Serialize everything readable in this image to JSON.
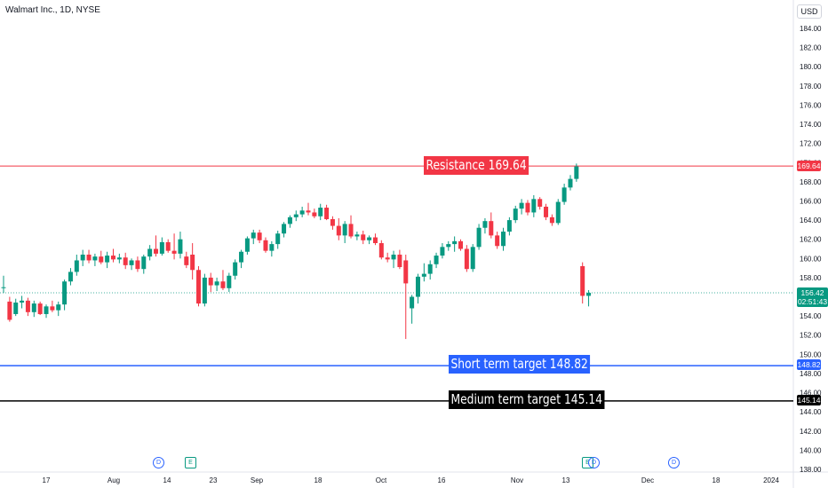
{
  "header": {
    "symbol_title": "Walmart Inc., 1D, NYSE",
    "currency": "USD"
  },
  "chart_data": {
    "type": "candlestick",
    "ylim": [
      138,
      186
    ],
    "y_ticks": [
      138,
      140,
      142,
      144,
      146,
      148,
      150,
      152,
      154,
      156,
      158,
      160,
      162,
      164,
      166,
      168,
      170,
      172,
      174,
      176,
      178,
      180,
      182,
      184
    ],
    "x_tick_labels": [
      "17",
      "Aug",
      "14",
      "23",
      "Sep",
      "18",
      "Oct",
      "16",
      "Nov",
      "13",
      "Dec",
      "18",
      "2024"
    ],
    "candles": [
      {
        "o": 157.0,
        "h": 158.2,
        "l": 156.4,
        "c": 157.0
      },
      {
        "o": 155.5,
        "h": 156.0,
        "l": 153.4,
        "c": 153.6
      },
      {
        "o": 154.2,
        "h": 155.8,
        "l": 154.0,
        "c": 155.4
      },
      {
        "o": 155.4,
        "h": 156.1,
        "l": 154.8,
        "c": 155.6
      },
      {
        "o": 155.6,
        "h": 155.9,
        "l": 154.0,
        "c": 154.4
      },
      {
        "o": 154.4,
        "h": 155.6,
        "l": 153.9,
        "c": 155.3
      },
      {
        "o": 155.3,
        "h": 155.5,
        "l": 154.1,
        "c": 154.2
      },
      {
        "o": 154.2,
        "h": 155.2,
        "l": 153.8,
        "c": 155.0
      },
      {
        "o": 155.0,
        "h": 155.6,
        "l": 154.4,
        "c": 154.6
      },
      {
        "o": 154.6,
        "h": 155.5,
        "l": 154.0,
        "c": 155.2
      },
      {
        "o": 155.2,
        "h": 157.8,
        "l": 154.6,
        "c": 157.6
      },
      {
        "o": 157.6,
        "h": 159.0,
        "l": 157.2,
        "c": 158.6
      },
      {
        "o": 158.6,
        "h": 160.4,
        "l": 158.2,
        "c": 159.8
      },
      {
        "o": 159.8,
        "h": 160.9,
        "l": 159.2,
        "c": 160.4
      },
      {
        "o": 160.4,
        "h": 160.9,
        "l": 159.5,
        "c": 159.8
      },
      {
        "o": 159.8,
        "h": 160.5,
        "l": 159.2,
        "c": 160.2
      },
      {
        "o": 160.2,
        "h": 160.8,
        "l": 159.4,
        "c": 159.6
      },
      {
        "o": 159.6,
        "h": 160.7,
        "l": 159.0,
        "c": 160.3
      },
      {
        "o": 160.3,
        "h": 161.0,
        "l": 159.6,
        "c": 159.9
      },
      {
        "o": 159.9,
        "h": 160.5,
        "l": 159.5,
        "c": 160.1
      },
      {
        "o": 160.1,
        "h": 160.6,
        "l": 158.9,
        "c": 159.3
      },
      {
        "o": 159.3,
        "h": 160.0,
        "l": 158.8,
        "c": 159.8
      },
      {
        "o": 159.8,
        "h": 160.2,
        "l": 158.6,
        "c": 158.9
      },
      {
        "o": 158.9,
        "h": 160.4,
        "l": 158.4,
        "c": 160.2
      },
      {
        "o": 160.2,
        "h": 161.4,
        "l": 159.8,
        "c": 161.0
      },
      {
        "o": 161.0,
        "h": 162.4,
        "l": 160.2,
        "c": 160.5
      },
      {
        "o": 160.5,
        "h": 162.2,
        "l": 160.3,
        "c": 161.7
      },
      {
        "o": 161.7,
        "h": 162.0,
        "l": 160.6,
        "c": 160.8
      },
      {
        "o": 160.8,
        "h": 162.6,
        "l": 159.9,
        "c": 160.5
      },
      {
        "o": 160.5,
        "h": 162.8,
        "l": 160.0,
        "c": 162.0
      },
      {
        "o": 160.2,
        "h": 160.7,
        "l": 159.0,
        "c": 159.3
      },
      {
        "o": 160.4,
        "h": 161.6,
        "l": 157.8,
        "c": 158.8
      },
      {
        "o": 158.8,
        "h": 159.2,
        "l": 155.0,
        "c": 155.3
      },
      {
        "o": 155.3,
        "h": 158.4,
        "l": 155.0,
        "c": 158.0
      },
      {
        "o": 158.0,
        "h": 158.5,
        "l": 156.5,
        "c": 157.2
      },
      {
        "o": 157.2,
        "h": 158.0,
        "l": 156.6,
        "c": 157.6
      },
      {
        "o": 157.6,
        "h": 158.8,
        "l": 156.7,
        "c": 156.9
      },
      {
        "o": 156.9,
        "h": 158.5,
        "l": 156.5,
        "c": 158.2
      },
      {
        "o": 158.2,
        "h": 159.9,
        "l": 157.8,
        "c": 159.6
      },
      {
        "o": 159.6,
        "h": 160.9,
        "l": 159.0,
        "c": 160.7
      },
      {
        "o": 160.7,
        "h": 162.3,
        "l": 160.4,
        "c": 162.1
      },
      {
        "o": 162.1,
        "h": 163.0,
        "l": 161.5,
        "c": 162.7
      },
      {
        "o": 162.7,
        "h": 163.0,
        "l": 161.6,
        "c": 161.9
      },
      {
        "o": 161.9,
        "h": 162.2,
        "l": 160.6,
        "c": 160.8
      },
      {
        "o": 160.8,
        "h": 161.8,
        "l": 160.2,
        "c": 161.5
      },
      {
        "o": 161.5,
        "h": 162.9,
        "l": 161.0,
        "c": 162.6
      },
      {
        "o": 162.6,
        "h": 163.8,
        "l": 162.2,
        "c": 163.6
      },
      {
        "o": 163.6,
        "h": 164.5,
        "l": 163.2,
        "c": 164.3
      },
      {
        "o": 164.3,
        "h": 165.0,
        "l": 163.9,
        "c": 164.6
      },
      {
        "o": 164.6,
        "h": 165.4,
        "l": 164.3,
        "c": 165.0
      },
      {
        "o": 165.0,
        "h": 165.8,
        "l": 164.5,
        "c": 164.8
      },
      {
        "o": 164.8,
        "h": 165.2,
        "l": 164.2,
        "c": 164.4
      },
      {
        "o": 164.4,
        "h": 165.7,
        "l": 164.0,
        "c": 165.3
      },
      {
        "o": 165.3,
        "h": 165.6,
        "l": 164.0,
        "c": 164.1
      },
      {
        "o": 164.1,
        "h": 164.4,
        "l": 163.0,
        "c": 163.4
      },
      {
        "o": 163.4,
        "h": 164.2,
        "l": 161.9,
        "c": 162.4
      },
      {
        "o": 162.4,
        "h": 163.9,
        "l": 161.6,
        "c": 163.6
      },
      {
        "o": 163.6,
        "h": 164.5,
        "l": 162.1,
        "c": 162.3
      },
      {
        "o": 162.3,
        "h": 162.8,
        "l": 161.9,
        "c": 162.5
      },
      {
        "o": 162.5,
        "h": 162.9,
        "l": 161.5,
        "c": 161.9
      },
      {
        "o": 161.9,
        "h": 162.4,
        "l": 161.5,
        "c": 162.2
      },
      {
        "o": 162.2,
        "h": 162.6,
        "l": 161.4,
        "c": 161.6
      },
      {
        "o": 161.6,
        "h": 161.9,
        "l": 159.9,
        "c": 160.1
      },
      {
        "o": 160.1,
        "h": 160.6,
        "l": 159.6,
        "c": 159.9
      },
      {
        "o": 159.9,
        "h": 160.8,
        "l": 159.0,
        "c": 160.4
      },
      {
        "o": 160.4,
        "h": 160.9,
        "l": 158.9,
        "c": 159.1
      },
      {
        "o": 159.8,
        "h": 160.4,
        "l": 151.6,
        "c": 157.4
      },
      {
        "o": 154.8,
        "h": 156.2,
        "l": 153.2,
        "c": 156.0
      },
      {
        "o": 156.0,
        "h": 158.4,
        "l": 155.3,
        "c": 158.1
      },
      {
        "o": 158.1,
        "h": 159.5,
        "l": 157.6,
        "c": 158.4
      },
      {
        "o": 158.4,
        "h": 159.8,
        "l": 157.8,
        "c": 159.4
      },
      {
        "o": 159.4,
        "h": 160.6,
        "l": 159.0,
        "c": 160.3
      },
      {
        "o": 160.3,
        "h": 161.6,
        "l": 160.0,
        "c": 161.2
      },
      {
        "o": 161.2,
        "h": 161.8,
        "l": 160.8,
        "c": 161.5
      },
      {
        "o": 161.5,
        "h": 162.3,
        "l": 160.7,
        "c": 161.8
      },
      {
        "o": 161.8,
        "h": 162.0,
        "l": 160.8,
        "c": 161.0
      },
      {
        "o": 161.0,
        "h": 161.4,
        "l": 158.6,
        "c": 158.9
      },
      {
        "o": 158.9,
        "h": 161.5,
        "l": 158.6,
        "c": 161.2
      },
      {
        "o": 161.2,
        "h": 163.6,
        "l": 160.9,
        "c": 163.2
      },
      {
        "o": 163.2,
        "h": 164.2,
        "l": 162.6,
        "c": 163.9
      },
      {
        "o": 163.9,
        "h": 164.8,
        "l": 162.1,
        "c": 162.4
      },
      {
        "o": 162.4,
        "h": 162.8,
        "l": 161.0,
        "c": 161.3
      },
      {
        "o": 161.3,
        "h": 163.2,
        "l": 160.8,
        "c": 162.8
      },
      {
        "o": 162.8,
        "h": 164.3,
        "l": 162.4,
        "c": 164.0
      },
      {
        "o": 164.0,
        "h": 165.5,
        "l": 163.7,
        "c": 165.2
      },
      {
        "o": 165.2,
        "h": 166.2,
        "l": 164.6,
        "c": 165.8
      },
      {
        "o": 165.8,
        "h": 166.1,
        "l": 164.5,
        "c": 164.8
      },
      {
        "o": 164.8,
        "h": 166.6,
        "l": 164.3,
        "c": 166.2
      },
      {
        "o": 166.2,
        "h": 166.4,
        "l": 165.1,
        "c": 165.4
      },
      {
        "o": 165.4,
        "h": 165.7,
        "l": 164.0,
        "c": 164.3
      },
      {
        "o": 164.3,
        "h": 164.6,
        "l": 163.4,
        "c": 163.7
      },
      {
        "o": 163.7,
        "h": 166.2,
        "l": 163.5,
        "c": 165.9
      },
      {
        "o": 165.9,
        "h": 167.8,
        "l": 165.6,
        "c": 167.4
      },
      {
        "o": 167.4,
        "h": 168.7,
        "l": 167.1,
        "c": 168.3
      },
      {
        "o": 168.3,
        "h": 169.9,
        "l": 168.0,
        "c": 169.6
      },
      {
        "o": 159.2,
        "h": 159.6,
        "l": 155.3,
        "c": 156.1
      },
      {
        "o": 156.1,
        "h": 156.7,
        "l": 155.0,
        "c": 156.42
      }
    ],
    "levels": [
      {
        "name": "Resistance 169.64",
        "value": 169.64,
        "color": "#f23645"
      },
      {
        "name": "Short term target 148.82",
        "value": 148.82,
        "color": "#2962ff"
      },
      {
        "name": "Medium term target 145.14",
        "value": 145.14,
        "color": "#000000"
      }
    ],
    "last_price": 156.42,
    "countdown": "02:51:43"
  },
  "price_tags": {
    "resistance": "169.64",
    "short_term": "148.82",
    "medium_term": "145.14",
    "current": "156.42",
    "countdown": "02:51:43"
  },
  "events": [
    {
      "kind": "dividend",
      "letter": "D"
    },
    {
      "kind": "earnings",
      "letter": "E"
    },
    {
      "kind": "dividend",
      "letter": "D"
    },
    {
      "kind": "earnings",
      "letter": "E"
    },
    {
      "kind": "dividend",
      "letter": "D"
    }
  ],
  "colors": {
    "up": "#089981",
    "down": "#f23645",
    "grid": "#f0f3fa",
    "axis_text": "#131722"
  }
}
